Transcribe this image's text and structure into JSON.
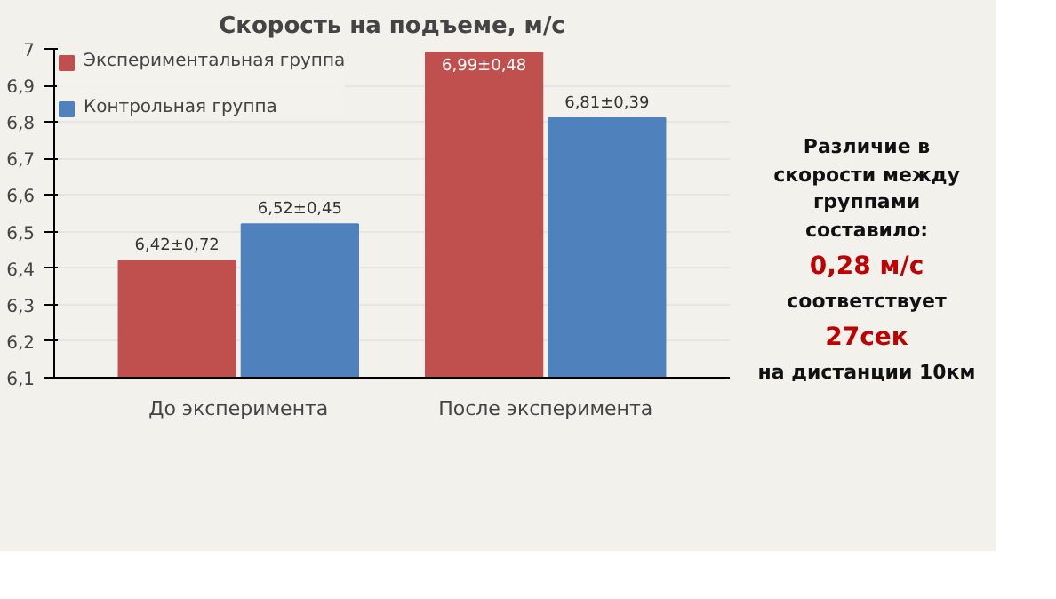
{
  "chart_data": {
    "type": "bar",
    "title": "Скорость на подъеме, м/с",
    "categories": [
      "До эксперимента",
      "После эксперимента"
    ],
    "series": [
      {
        "name": "Экспериментальная группа",
        "color": "#c0504d",
        "values": [
          6.42,
          6.99
        ],
        "value_labels": [
          "6,42±0,72",
          "6,99±0,48"
        ]
      },
      {
        "name": "Контрольная группа",
        "color": "#4f81bd",
        "values": [
          6.52,
          6.81
        ],
        "value_labels": [
          "6,52±0,45",
          "6,81±0,39"
        ]
      }
    ],
    "ylim": [
      6.1,
      7
    ],
    "yticks": [
      {
        "value": 6.1,
        "label": "6,1"
      },
      {
        "value": 6.2,
        "label": "6,2"
      },
      {
        "value": 6.3,
        "label": "6,3"
      },
      {
        "value": 6.4,
        "label": "6,4"
      },
      {
        "value": 6.5,
        "label": "6,5"
      },
      {
        "value": 6.6,
        "label": "6,6"
      },
      {
        "value": 6.7,
        "label": "6,7"
      },
      {
        "value": 6.8,
        "label": "6,8"
      },
      {
        "value": 6.9,
        "label": "6,9"
      },
      {
        "value": 7,
        "label": "7"
      }
    ],
    "grid": "y",
    "legend": "top left",
    "annotations": [
      "Различие в скорости между группами составило:",
      "0,28 м/с",
      "соответствует",
      "27сек",
      "на дистанции 10км"
    ]
  }
}
